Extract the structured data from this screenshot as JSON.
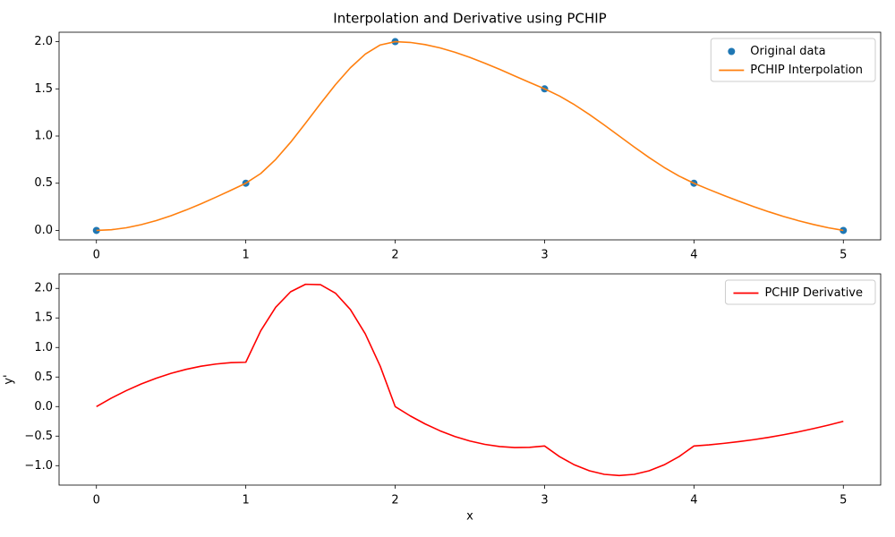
{
  "chart_data": [
    {
      "type": "line",
      "title": "Interpolation and Derivative using PCHIP",
      "xlim": [
        -0.25,
        5.25
      ],
      "xticks": [
        0,
        1,
        2,
        3,
        4,
        5
      ],
      "ylim": [
        -0.1,
        2.1
      ],
      "yticks": [
        {
          "value": 0,
          "label": "0.0"
        },
        {
          "value": 0.5,
          "label": "0.5"
        },
        {
          "value": 1,
          "label": "1.0"
        },
        {
          "value": 1.5,
          "label": "1.5"
        },
        {
          "value": 2,
          "label": "2.0"
        }
      ],
      "legend": "upper right",
      "series": [
        {
          "name": "Original data",
          "type": "scatter",
          "color": "#1f77b4",
          "x": [
            0,
            1,
            2,
            3,
            4,
            5
          ],
          "values": [
            0,
            0.5,
            2,
            1.5,
            0.5,
            0
          ]
        },
        {
          "name": "PCHIP Interpolation",
          "type": "line",
          "color": "#ff7f0e",
          "x": [
            0,
            0.1,
            0.2,
            0.3,
            0.4,
            0.5,
            0.6,
            0.7,
            0.8,
            0.9,
            1,
            1.1,
            1.2,
            1.3,
            1.4,
            1.5,
            1.6,
            1.7,
            1.8,
            1.9,
            2,
            2.1,
            2.2,
            2.3,
            2.4,
            2.5,
            2.6,
            2.7,
            2.8,
            2.9,
            3,
            3.1,
            3.2,
            3.3,
            3.4,
            3.5,
            3.6,
            3.7,
            3.8,
            3.9,
            4,
            4.1,
            4.2,
            4.3,
            4.4,
            4.5,
            4.6,
            4.7,
            4.8,
            4.9,
            5
          ],
          "values": [
            0,
            0.007,
            0.028,
            0.061,
            0.104,
            0.156,
            0.216,
            0.282,
            0.352,
            0.425,
            0.5,
            0.603,
            0.752,
            0.934,
            1.136,
            1.344,
            1.544,
            1.723,
            1.868,
            1.965,
            2,
            1.992,
            1.969,
            1.934,
            1.888,
            1.833,
            1.772,
            1.706,
            1.637,
            1.568,
            1.5,
            1.424,
            1.332,
            1.228,
            1.116,
            1,
            0.884,
            0.772,
            0.668,
            0.576,
            0.5,
            0.434,
            0.371,
            0.31,
            0.252,
            0.198,
            0.148,
            0.103,
            0.063,
            0.028,
            0
          ]
        }
      ]
    },
    {
      "type": "line",
      "xlabel": "x",
      "ylabel": "y'",
      "xlim": [
        -0.25,
        5.25
      ],
      "xticks": [
        0,
        1,
        2,
        3,
        4,
        5
      ],
      "ylim": [
        -1.329,
        2.246
      ],
      "yticks": [
        {
          "value": -1,
          "label": "−1.0"
        },
        {
          "value": -0.5,
          "label": "−0.5"
        },
        {
          "value": 0,
          "label": "0.0"
        },
        {
          "value": 0.5,
          "label": "0.5"
        },
        {
          "value": 1,
          "label": "1.0"
        },
        {
          "value": 1.5,
          "label": "1.5"
        },
        {
          "value": 2,
          "label": "2.0"
        }
      ],
      "legend": "upper right",
      "series": [
        {
          "name": "PCHIP Derivative",
          "type": "line",
          "color": "#ff0000",
          "x": [
            0,
            0.1,
            0.2,
            0.3,
            0.4,
            0.5,
            0.6,
            0.7,
            0.8,
            0.9,
            1,
            1.1,
            1.2,
            1.3,
            1.4,
            1.5,
            1.6,
            1.7,
            1.8,
            1.9,
            2,
            2.1,
            2.2,
            2.3,
            2.4,
            2.5,
            2.6,
            2.7,
            2.8,
            2.9,
            3,
            3.1,
            3.2,
            3.3,
            3.4,
            3.5,
            3.6,
            3.7,
            3.8,
            3.9,
            4,
            4.1,
            4.2,
            4.3,
            4.4,
            4.5,
            4.6,
            4.7,
            4.8,
            4.9,
            5
          ],
          "values": [
            0,
            0.143,
            0.27,
            0.383,
            0.48,
            0.563,
            0.63,
            0.683,
            0.72,
            0.743,
            0.75,
            1.283,
            1.68,
            1.943,
            2.07,
            2.063,
            1.92,
            1.643,
            1.23,
            0.683,
            0,
            -0.157,
            -0.293,
            -0.41,
            -0.507,
            -0.583,
            -0.64,
            -0.677,
            -0.693,
            -0.69,
            -0.667,
            -0.847,
            -0.987,
            -1.087,
            -1.147,
            -1.167,
            -1.147,
            -1.087,
            -0.987,
            -0.847,
            -0.667,
            -0.648,
            -0.623,
            -0.594,
            -0.56,
            -0.521,
            -0.477,
            -0.428,
            -0.373,
            -0.314,
            -0.25
          ]
        }
      ]
    }
  ]
}
